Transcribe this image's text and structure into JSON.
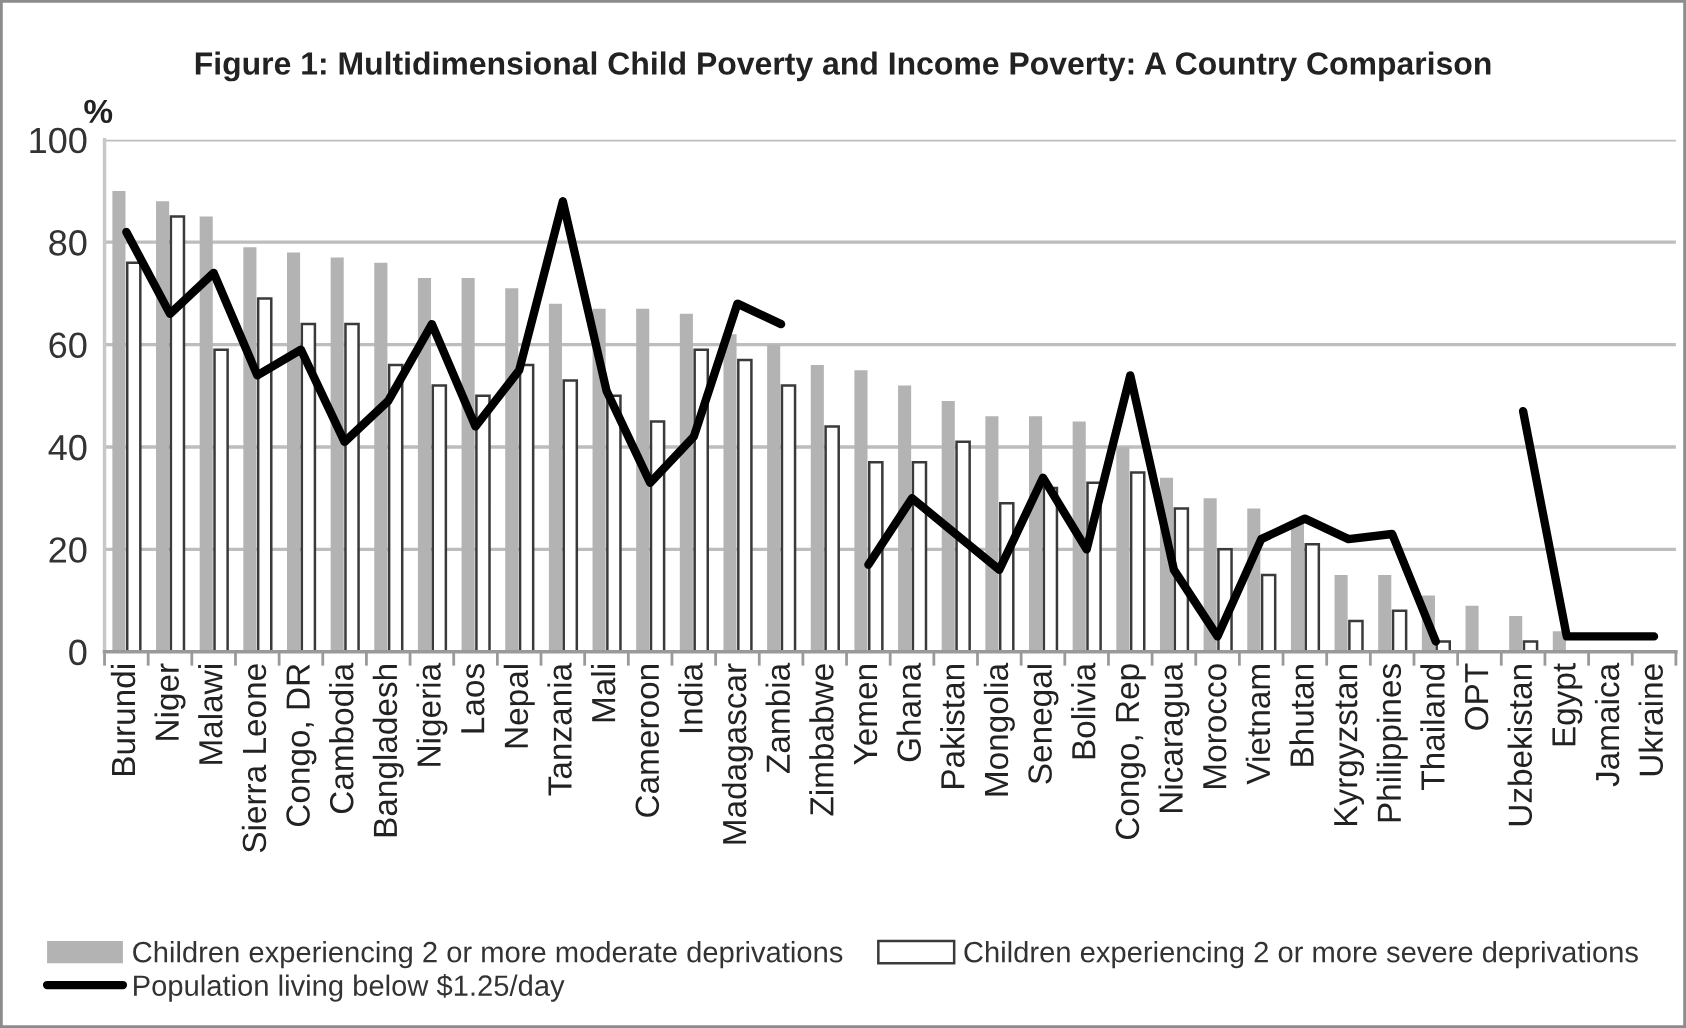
{
  "chart_data": {
    "type": "bar",
    "title": "Figure 1: Multidimensional Child Poverty and Income Poverty: A Country Comparison",
    "ylabel": "%",
    "categories": [
      "Burundi",
      "Niger",
      "Malawi",
      "Sierra Leone",
      "Congo, DR",
      "Cambodia",
      "Bangladesh",
      "Nigeria",
      "Laos",
      "Nepal",
      "Tanzania",
      "Mali",
      "Cameroon",
      "India",
      "Madagascar",
      "Zambia",
      "Zimbabwe",
      "Yemen",
      "Ghana",
      "Pakistan",
      "Mongolia",
      "Senegal",
      "Bolivia",
      "Congo, Rep",
      "Nicaragua",
      "Morocco",
      "Vietnam",
      "Bhutan",
      "Kyrgyzstan",
      "Philippines",
      "Thailand",
      "OPT",
      "Uzbekistan",
      "Egypt",
      "Jamaica",
      "Ukraine"
    ],
    "series": [
      {
        "name": "Children experiencing 2 or more moderate deprivations",
        "color": "#b3b3b3",
        "values": [
          90,
          88,
          85,
          79,
          78,
          77,
          76,
          73,
          73,
          71,
          68,
          67,
          67,
          66,
          62,
          60,
          56,
          55,
          52,
          49,
          46,
          46,
          45,
          40,
          34,
          30,
          28,
          25,
          15,
          15,
          11,
          9,
          7,
          4,
          null,
          null
        ]
      },
      {
        "name": "Children experiencing 2 or more severe deprivations",
        "color": "#ffffff",
        "values": [
          76,
          85,
          59,
          69,
          64,
          64,
          56,
          52,
          50,
          56,
          53,
          50,
          45,
          59,
          57,
          52,
          44,
          37,
          37,
          41,
          29,
          32,
          33,
          35,
          28,
          20,
          15,
          21,
          6,
          8,
          2,
          null,
          2,
          null,
          null,
          null
        ]
      },
      {
        "name": "Population living below $1.25/day",
        "type": "line",
        "line_style": "solid",
        "color": "#000000",
        "values": [
          82,
          66,
          74,
          54,
          59,
          41,
          49,
          64,
          44,
          55,
          88,
          51,
          33,
          42,
          68,
          64,
          null,
          17,
          30,
          23,
          16,
          34,
          20,
          54,
          16,
          3,
          22,
          26,
          22,
          23,
          2,
          null,
          47,
          3,
          3,
          3
        ]
      }
    ],
    "ylim": [
      0,
      100
    ],
    "yticks": [
      0,
      20,
      40,
      60,
      80,
      100
    ],
    "grid": "y",
    "legend": "bottom"
  }
}
